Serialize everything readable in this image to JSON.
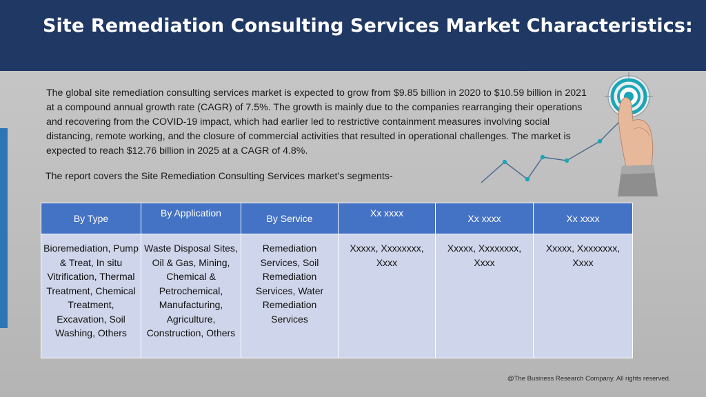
{
  "title": "Site Remediation Consulting Services Market Characteristics:",
  "paragraph": "The global site remediation consulting services market is expected to grow from $9.85 billion in 2020 to $10.59 billion in 2021 at a compound annual growth rate (CAGR) of 7.5%. The growth is mainly due to the companies rearranging their operations and recovering from the COVID-19 impact, which had earlier led to restrictive containment measures involving social distancing, remote working, and the closure of commercial activities that resulted in operational challenges. The market is expected to reach $12.76 billion in 2025 at a CAGR of 4.8%.",
  "segments_line": "The report covers the Site Remediation Consulting Services market’s segments-",
  "table": {
    "headers": [
      "By Type",
      "By Application",
      "By Service",
      "Xx xxxx",
      "Xx xxxx",
      "Xx xxxx"
    ],
    "cells": [
      "Bioremediation, Pump & Treat, In situ Vitrification, Thermal Treatment, Chemical Treatment, Excavation, Soil Washing, Others",
      "Waste Disposal Sites, Oil & Gas, Mining, Chemical & Petrochemical, Manufacturing, Agriculture, Construction, Others",
      "Remediation Services, Soil Remediation Services, Water Remediation Services",
      "Xxxxx, Xxxxxxxx, Xxxx",
      "Xxxxx, Xxxxxxxx, Xxxx",
      "Xxxxx, Xxxxxxxx, Xxxx"
    ]
  },
  "footer": "@The Business Research Company. All rights reserved.",
  "colors": {
    "header_bg": "#1f3864",
    "table_header": "#4472c4",
    "table_body": "#cfd5ea",
    "accent_bar": "#2e75b6",
    "target_ring": "#1aa6b7"
  },
  "icons": [
    "target-touch-graphic"
  ]
}
